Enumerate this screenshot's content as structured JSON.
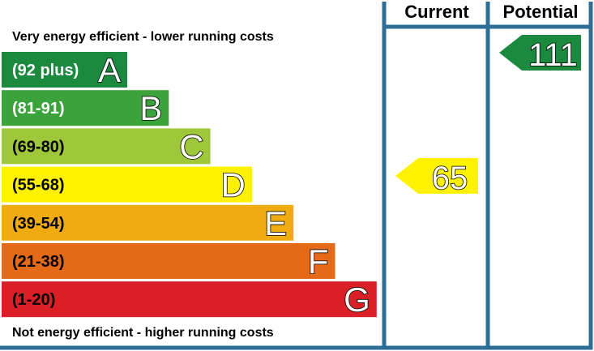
{
  "chart_data": {
    "type": "bar",
    "top_caption": "Very energy efficient - lower running costs",
    "bottom_caption": "Not energy efficient - higher running costs",
    "bands": [
      {
        "letter": "A",
        "range": "(92 plus)",
        "color": "#1b8a3f",
        "text_color": "#ffffff"
      },
      {
        "letter": "B",
        "range": "(81-91)",
        "color": "#3aa33b",
        "text_color": "#ffffff"
      },
      {
        "letter": "C",
        "range": "(69-80)",
        "color": "#9ec83a",
        "text_color": "#000000"
      },
      {
        "letter": "D",
        "range": "(55-68)",
        "color": "#fff200",
        "text_color": "#000000"
      },
      {
        "letter": "E",
        "range": "(39-54)",
        "color": "#f0ab11",
        "text_color": "#000000"
      },
      {
        "letter": "F",
        "range": "(21-38)",
        "color": "#e46a17",
        "text_color": "#000000"
      },
      {
        "letter": "G",
        "range": "(1-20)",
        "color": "#da1f26",
        "text_color": "#000000"
      }
    ],
    "columns": [
      {
        "label": "Current",
        "value": "65",
        "band": "D",
        "color": "#fff200"
      },
      {
        "label": "Potential",
        "value": "111",
        "band": "A",
        "color": "#1b8a3f"
      }
    ],
    "frame_color": "#2c6e96"
  }
}
